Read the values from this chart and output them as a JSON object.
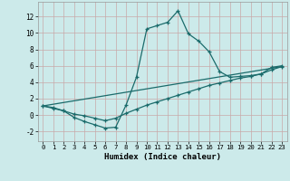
{
  "xlabel": "Humidex (Indice chaleur)",
  "bg_color": "#cceaea",
  "grid_color": "#aad4d4",
  "line_color": "#1a6b6b",
  "xlim": [
    -0.5,
    23.5
  ],
  "ylim": [
    -3.2,
    13.8
  ],
  "xticks": [
    0,
    1,
    2,
    3,
    4,
    5,
    6,
    7,
    8,
    9,
    10,
    11,
    12,
    13,
    14,
    15,
    16,
    17,
    18,
    19,
    20,
    21,
    22,
    23
  ],
  "yticks": [
    -2,
    0,
    2,
    4,
    6,
    8,
    10,
    12
  ],
  "curve1_x": [
    0,
    1,
    2,
    3,
    4,
    5,
    6,
    7,
    8,
    9,
    10,
    11,
    12,
    13,
    14,
    15,
    16,
    17,
    18,
    19,
    20,
    21,
    22,
    23
  ],
  "curve1_y": [
    1.1,
    0.8,
    0.5,
    -0.3,
    -0.8,
    -1.2,
    -1.6,
    -1.5,
    1.2,
    4.6,
    10.5,
    10.9,
    11.3,
    12.7,
    9.9,
    9.0,
    7.7,
    5.3,
    4.6,
    4.7,
    4.8,
    5.0,
    5.8,
    6.0
  ],
  "curve2_x": [
    0,
    1,
    2,
    3,
    4,
    5,
    6,
    7,
    8,
    9,
    10,
    11,
    12,
    13,
    14,
    15,
    16,
    17,
    18,
    19,
    20,
    21,
    22,
    23
  ],
  "curve2_y": [
    1.1,
    0.9,
    0.5,
    0.1,
    -0.1,
    -0.4,
    -0.7,
    -0.4,
    0.2,
    0.7,
    1.2,
    1.6,
    2.0,
    2.4,
    2.8,
    3.2,
    3.6,
    3.9,
    4.2,
    4.5,
    4.7,
    5.0,
    5.5,
    5.9
  ],
  "curve3_x": [
    0,
    23
  ],
  "curve3_y": [
    1.1,
    5.9
  ]
}
